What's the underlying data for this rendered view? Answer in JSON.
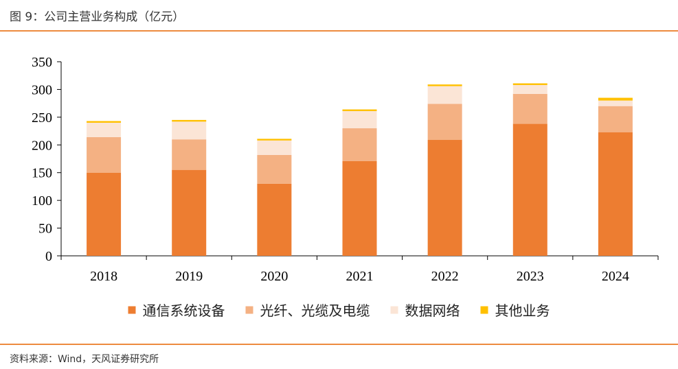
{
  "figure": {
    "title": "图 9：公司主营业务构成（亿元）",
    "source": "资料来源：Wind，天风证券研究所"
  },
  "chart_data": {
    "type": "bar",
    "stacked": true,
    "title": "",
    "xlabel": "",
    "ylabel": "",
    "categories": [
      "2018",
      "2019",
      "2020",
      "2021",
      "2022",
      "2023",
      "2024"
    ],
    "ylim": [
      0,
      350
    ],
    "yticks": [
      0,
      50,
      100,
      150,
      200,
      250,
      300,
      350
    ],
    "grid": false,
    "legend_position": "bottom",
    "series": [
      {
        "name": "通信系统设备",
        "color": "#ED7D31",
        "values": [
          150,
          155,
          130,
          171,
          209,
          238,
          223
        ]
      },
      {
        "name": "光纤、光缆及电缆",
        "color": "#F4B183",
        "values": [
          64,
          55,
          52,
          59,
          65,
          54,
          47
        ]
      },
      {
        "name": "数据网络",
        "color": "#FBE5D6",
        "values": [
          26,
          32,
          26,
          31,
          32,
          16,
          10
        ]
      },
      {
        "name": "其他业务",
        "color": "#FFC000",
        "values": [
          3,
          3,
          3,
          3,
          3,
          3,
          5
        ]
      }
    ]
  }
}
